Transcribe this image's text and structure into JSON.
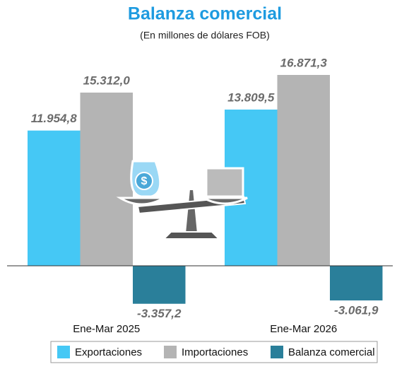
{
  "chart_data": {
    "type": "bar",
    "title": "Balanza comercial",
    "subtitle": "(En millones de dólares FOB)",
    "categories": [
      "Ene-Mar 2025",
      "Ene-Mar 2026"
    ],
    "series": [
      {
        "name": "Exportaciones",
        "color": "#45c8f5",
        "values": [
          11954.8,
          13809.5
        ],
        "value_labels": [
          "11.954,8",
          "13.809,5"
        ]
      },
      {
        "name": "Importaciones",
        "color": "#b4b4b4",
        "values": [
          15312.0,
          16871.3
        ],
        "value_labels": [
          "15.312,0",
          "16.871,3"
        ]
      },
      {
        "name": "Balanza comercial",
        "color": "#2a7f9a",
        "values": [
          -3357.2,
          -3061.9
        ],
        "value_labels": [
          "-3.357,2",
          "-3.061,9"
        ]
      }
    ],
    "legend": "bottom"
  }
}
